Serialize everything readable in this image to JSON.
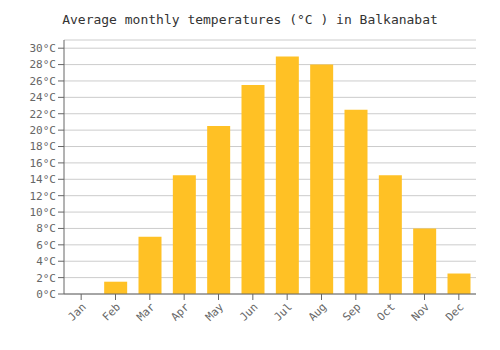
{
  "chart_data": {
    "type": "bar",
    "title": "Average monthly temperatures (°C ) in Balkanabat",
    "categories": [
      "Jan",
      "Feb",
      "Mar",
      "Apr",
      "May",
      "Jun",
      "Jul",
      "Aug",
      "Sep",
      "Oct",
      "Nov",
      "Dec"
    ],
    "values": [
      0,
      1.5,
      7,
      14.5,
      20.5,
      25.5,
      29,
      28,
      22.5,
      14.5,
      8,
      2.5
    ],
    "color": "#FFC125",
    "ylim": [
      0,
      31
    ],
    "yticks": [
      {
        "value": 0,
        "label": "0°C"
      },
      {
        "value": 2,
        "label": "2°C"
      },
      {
        "value": 4,
        "label": "4°C"
      },
      {
        "value": 6,
        "label": "6°C"
      },
      {
        "value": 8,
        "label": "8°C"
      },
      {
        "value": 10,
        "label": "10°C"
      },
      {
        "value": 12,
        "label": "12°C"
      },
      {
        "value": 14,
        "label": "14°C"
      },
      {
        "value": 16,
        "label": "16°C"
      },
      {
        "value": 18,
        "label": "18°C"
      },
      {
        "value": 20,
        "label": "20°C"
      },
      {
        "value": 22,
        "label": "22°C"
      },
      {
        "value": 24,
        "label": "24°C"
      },
      {
        "value": 26,
        "label": "26°C"
      },
      {
        "value": 28,
        "label": "28°C"
      },
      {
        "value": 30,
        "label": "30°C"
      }
    ],
    "grid": true
  }
}
